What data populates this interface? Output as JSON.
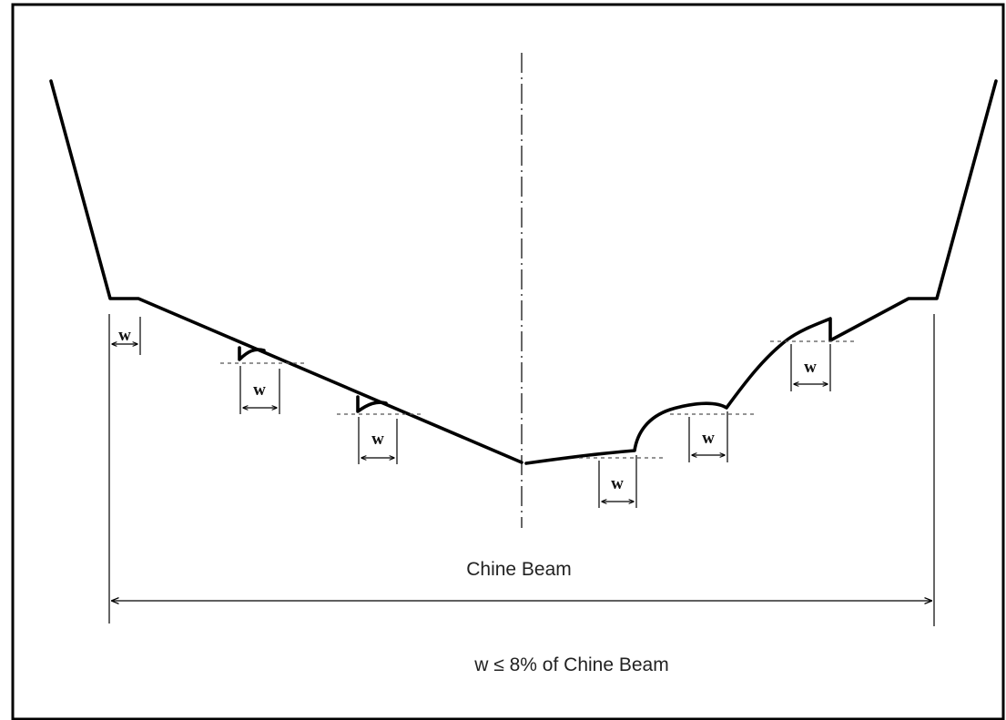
{
  "labels": {
    "w": "w",
    "chine_beam": "Chine Beam",
    "rule": "w ≤ 8% of Chine Beam"
  },
  "colors": {
    "line": "#000000",
    "dash": "#555555",
    "background": "#ffffff"
  }
}
